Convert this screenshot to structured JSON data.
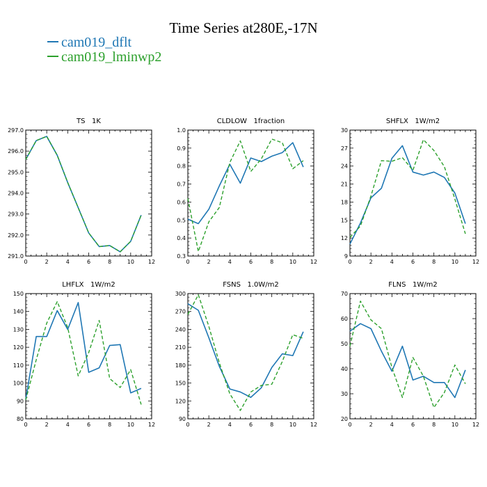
{
  "figure": {
    "title": "Time Series at280E,-17N",
    "legend": [
      {
        "label": "cam019_dflt",
        "color": "#1f77b4"
      },
      {
        "label": "cam019_lminwp2",
        "color": "#2ca02c"
      }
    ]
  },
  "chart_data": [
    {
      "type": "line",
      "title": "TS   1K",
      "xlim": [
        0,
        12
      ],
      "xticks": [
        0,
        2,
        4,
        6,
        8,
        10,
        12
      ],
      "ylim": [
        291.0,
        297.0
      ],
      "yticks": [
        291.0,
        292.0,
        293.0,
        294.0,
        295.0,
        296.0,
        297.0
      ],
      "ytick_labels": [
        "291.0",
        "292.0",
        "293.0",
        "294.0",
        "295.0",
        "296.0",
        "297.0"
      ],
      "x": [
        0,
        1,
        2,
        3,
        4,
        5,
        6,
        7,
        8,
        9,
        10,
        11
      ],
      "series": [
        {
          "name": "cam019_dflt",
          "values": [
            295.6,
            296.5,
            296.7,
            295.8,
            294.5,
            293.3,
            292.1,
            291.45,
            291.5,
            291.2,
            291.7,
            292.95
          ]
        },
        {
          "name": "cam019_lminwp2",
          "values": [
            295.6,
            296.5,
            296.7,
            295.8,
            294.5,
            293.3,
            292.1,
            291.45,
            291.5,
            291.2,
            291.7,
            292.95
          ]
        }
      ]
    },
    {
      "type": "line",
      "title": "CLDLOW   1fraction",
      "xlim": [
        0,
        12
      ],
      "xticks": [
        0,
        2,
        4,
        6,
        8,
        10,
        12
      ],
      "ylim": [
        0.3,
        1.0
      ],
      "yticks": [
        0.3,
        0.4,
        0.5,
        0.6,
        0.7,
        0.8,
        0.9,
        1.0
      ],
      "ytick_labels": [
        "0.3",
        "0.4",
        "0.5",
        "0.6",
        "0.7",
        "0.8",
        "0.9",
        "1.0"
      ],
      "x": [
        0,
        1,
        2,
        3,
        4,
        5,
        6,
        7,
        8,
        9,
        10,
        11
      ],
      "series": [
        {
          "name": "cam019_dflt",
          "values": [
            0.505,
            0.48,
            0.56,
            0.69,
            0.81,
            0.705,
            0.845,
            0.825,
            0.855,
            0.875,
            0.93,
            0.795
          ]
        },
        {
          "name": "cam019_lminwp2",
          "values": [
            0.62,
            0.325,
            0.49,
            0.57,
            0.82,
            0.94,
            0.77,
            0.84,
            0.95,
            0.93,
            0.785,
            0.83
          ]
        }
      ]
    },
    {
      "type": "line",
      "title": "SHFLX   1W/m2",
      "xlim": [
        0,
        12
      ],
      "xticks": [
        0,
        2,
        4,
        6,
        8,
        10,
        12
      ],
      "ylim": [
        9,
        30
      ],
      "yticks": [
        9,
        12,
        15,
        18,
        21,
        24,
        27,
        30
      ],
      "ytick_labels": [
        "9",
        "12",
        "15",
        "18",
        "21",
        "24",
        "27",
        "30"
      ],
      "x": [
        0,
        1,
        2,
        3,
        4,
        5,
        6,
        7,
        8,
        9,
        10,
        11
      ],
      "series": [
        {
          "name": "cam019_dflt",
          "values": [
            11.0,
            14.5,
            18.7,
            20.3,
            25.3,
            27.4,
            23.0,
            22.5,
            23.0,
            22.1,
            19.5,
            14.4
          ]
        },
        {
          "name": "cam019_lminwp2",
          "values": [
            12.1,
            14.0,
            19.0,
            24.9,
            24.8,
            25.4,
            23.3,
            28.4,
            26.6,
            23.9,
            18.5,
            12.7
          ]
        }
      ]
    },
    {
      "type": "line",
      "title": "LHFLX   1W/m2",
      "xlim": [
        0,
        12
      ],
      "xticks": [
        0,
        2,
        4,
        6,
        8,
        10,
        12
      ],
      "ylim": [
        80,
        150
      ],
      "yticks": [
        80,
        90,
        100,
        110,
        120,
        130,
        140,
        150
      ],
      "ytick_labels": [
        "80",
        "90",
        "100",
        "110",
        "120",
        "130",
        "140",
        "150"
      ],
      "x": [
        0,
        1,
        2,
        3,
        4,
        5,
        6,
        7,
        8,
        9,
        10,
        11
      ],
      "series": [
        {
          "name": "cam019_dflt",
          "values": [
            91.0,
            126.0,
            126.0,
            140.5,
            130.0,
            145.0,
            106.0,
            108.5,
            121.0,
            121.5,
            94.5,
            97.0
          ]
        },
        {
          "name": "cam019_lminwp2",
          "values": [
            90.5,
            113.0,
            133.5,
            145.5,
            131.0,
            104.0,
            117.0,
            135.0,
            102.5,
            97.5,
            107.5,
            88.0
          ]
        }
      ]
    },
    {
      "type": "line",
      "title": "FSNS   1.0W/m2",
      "xlim": [
        0,
        12
      ],
      "xticks": [
        0,
        2,
        4,
        6,
        8,
        10,
        12
      ],
      "ylim": [
        90,
        300
      ],
      "yticks": [
        90,
        120,
        150,
        180,
        210,
        240,
        270,
        300
      ],
      "ytick_labels": [
        "90",
        "120",
        "150",
        "180",
        "210",
        "240",
        "270",
        "300"
      ],
      "x": [
        0,
        1,
        2,
        3,
        4,
        5,
        6,
        7,
        8,
        9,
        10,
        11
      ],
      "series": [
        {
          "name": "cam019_dflt",
          "values": [
            283.0,
            272.0,
            226.0,
            178.0,
            140.0,
            135.0,
            126.0,
            142.0,
            176.0,
            199.0,
            196.0,
            236.0
          ]
        },
        {
          "name": "cam019_lminwp2",
          "values": [
            265.0,
            298.0,
            245.0,
            184.0,
            132.0,
            104.0,
            135.0,
            146.0,
            148.0,
            186.0,
            231.0,
            225.0
          ]
        }
      ]
    },
    {
      "type": "line",
      "title": "FLNS   1W/m2",
      "xlim": [
        0,
        12
      ],
      "xticks": [
        0,
        2,
        4,
        6,
        8,
        10,
        12
      ],
      "ylim": [
        20,
        70
      ],
      "yticks": [
        20,
        30,
        40,
        50,
        60,
        70
      ],
      "ytick_labels": [
        "20",
        "30",
        "40",
        "50",
        "60",
        "70"
      ],
      "x": [
        0,
        1,
        2,
        3,
        4,
        5,
        6,
        7,
        8,
        9,
        10,
        11
      ],
      "series": [
        {
          "name": "cam019_dflt",
          "values": [
            55.0,
            58.0,
            56.0,
            47.0,
            39.0,
            49.0,
            35.5,
            37.0,
            34.5,
            34.5,
            28.5,
            39.5
          ]
        },
        {
          "name": "cam019_lminwp2",
          "values": [
            49.0,
            67.0,
            59.5,
            56.0,
            40.5,
            28.5,
            44.5,
            37.0,
            24.5,
            30.5,
            41.5,
            34.0
          ]
        }
      ]
    }
  ]
}
